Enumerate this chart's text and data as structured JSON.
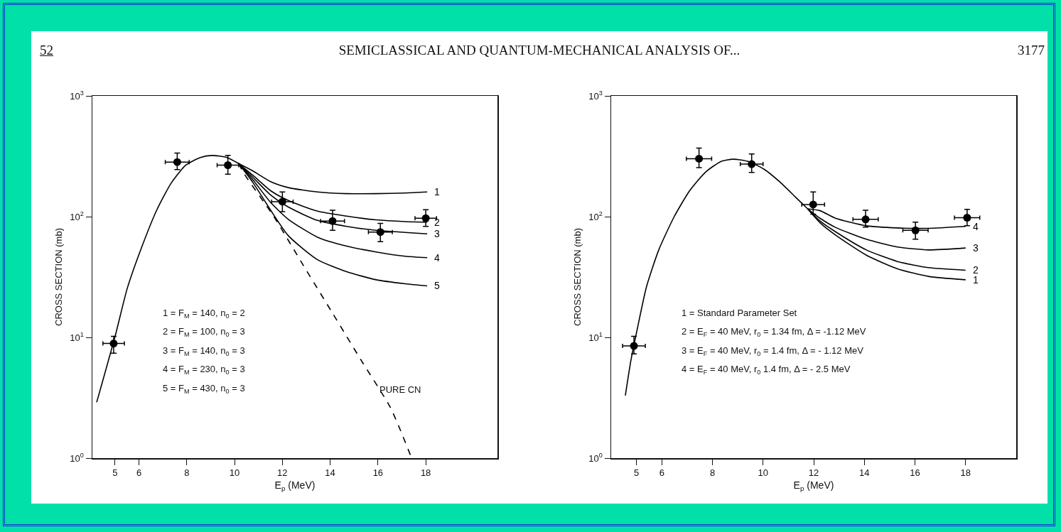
{
  "chart_data": [
    {
      "type": "other",
      "title": "SEMICLASSICAL AND QUANTUM-MECHANICAL ANALYSIS OF...",
      "annotations": [
        "52",
        "3177"
      ]
    },
    {
      "type": "line",
      "xlabel": "E$_{p}$ (MeV)",
      "ylabel": "CROSS SECTION (mb)",
      "log": "y",
      "grid": false,
      "xlim": [
        4.05,
        21
      ],
      "xticks": [
        5,
        6,
        8,
        10,
        12,
        14,
        16,
        18
      ],
      "ylim": [
        1,
        1000
      ],
      "yticks": [
        {
          "value": 1,
          "label": "10$^{0}$"
        },
        {
          "value": 10,
          "label": "10$^{1}$"
        },
        {
          "value": 100,
          "label": "10$^{2}$"
        },
        {
          "value": 1000,
          "label": "10$^{3}$"
        }
      ],
      "annotations": [
        "1 = F$_{M}$ = 140, n$_{0}$ = 2",
        "2 = F$_{M}$ = 100, n$_{0}$ = 3",
        "3 = F$_{M}$ = 140, n$_{0}$ = 3",
        "4 = F$_{M}$ = 230, n$_{0}$ = 3",
        "5 = F$_{M}$ = 430, n$_{0}$ = 3",
        {
          "text": "PURE CN",
          "x": 16.0,
          "y": 3.7
        }
      ],
      "series": [
        {
          "type": "line",
          "color": "#000000",
          "marker": "none",
          "line_style": "solid",
          "x": [
            4.23,
            5,
            5.51,
            6.13,
            6.74,
            7.35,
            7.96,
            8.57,
            9.06,
            9.68,
            10.17
          ],
          "values": [
            2.9,
            10.2,
            25.5,
            57,
            113,
            190,
            267,
            309,
            321,
            309,
            275
          ]
        },
        {
          "type": "line",
          "name": "1",
          "color": "#000000",
          "marker": "none",
          "line_style": "solid",
          "x": [
            10.17,
            10.78,
            11.51,
            12.25,
            13.47,
            14.69,
            15.92,
            17.14,
            18.06
          ],
          "values": [
            275,
            238,
            195,
            174,
            160,
            155,
            155,
            157,
            160
          ]
        },
        {
          "type": "line",
          "name": "2",
          "color": "#000000",
          "marker": "none",
          "line_style": "solid",
          "x": [
            10.17,
            10.78,
            11.51,
            12.25,
            13.47,
            14.69,
            15.92,
            17.14,
            18.06
          ],
          "values": [
            275,
            219,
            164,
            136,
            111,
            101,
            94,
            91,
            90
          ]
        },
        {
          "type": "line",
          "name": "3",
          "color": "#000000",
          "marker": "none",
          "line_style": "solid",
          "x": [
            10.17,
            10.78,
            11.51,
            12.25,
            13.47,
            14.69,
            15.92,
            17.14,
            18.06
          ],
          "values": [
            275,
            210,
            151,
            120,
            93,
            83,
            77,
            74,
            72
          ]
        },
        {
          "type": "line",
          "name": "4",
          "color": "#000000",
          "marker": "none",
          "line_style": "solid",
          "x": [
            10.17,
            10.78,
            11.51,
            12.25,
            13.47,
            14.69,
            15.92,
            17.14,
            18.06
          ],
          "values": [
            275,
            200,
            131,
            95,
            67.6,
            57,
            51,
            47,
            45.7
          ]
        },
        {
          "type": "line",
          "name": "5",
          "color": "#000000",
          "marker": "none",
          "line_style": "solid",
          "x": [
            10.17,
            10.78,
            11.51,
            12.25,
            13.47,
            14.69,
            15.92,
            17.14,
            18.06
          ],
          "values": [
            275,
            190,
            113,
            69.5,
            44,
            35,
            30,
            27.8,
            26.7
          ]
        },
        {
          "type": "line",
          "color": "#000000",
          "marker": "none",
          "line_style": "dashed",
          "x": [
            10.17,
            10.41,
            11.63,
            12.86,
            14.08,
            15.31,
            16.53,
            17.41
          ],
          "values": [
            275,
            225,
            101,
            40,
            16.1,
            6.4,
            2.6,
            1.0
          ]
        },
        {
          "type": "scatter",
          "color": "#000000",
          "marker": "circle",
          "x": [
            4.94,
            7.6,
            9.72,
            12.0,
            14.1,
            16.1,
            18.0
          ],
          "values": [
            8.9,
            283,
            267,
            133,
            92,
            74.5,
            97
          ],
          "errors": [
            [
              7.4,
              10.2
            ],
            [
              245,
              336
            ],
            [
              225,
              322
            ],
            [
              110,
              160
            ],
            [
              77,
              113
            ],
            [
              62,
              88
            ],
            [
              83,
              114
            ]
          ],
          "xerrors": [
            0.45,
            0.5,
            0.45,
            0.45,
            0.5,
            0.5,
            0.45
          ]
        }
      ]
    },
    {
      "type": "line",
      "xlabel": "E$_{p}$ (MeV)",
      "ylabel": "CROSS SECTION (mb)",
      "log": "y",
      "grid": false,
      "xlim": [
        4,
        20
      ],
      "xticks": [
        5,
        6,
        8,
        10,
        12,
        14,
        16,
        18
      ],
      "ylim": [
        1,
        1000
      ],
      "yticks": [
        {
          "value": 1,
          "label": "10$^{0}$"
        },
        {
          "value": 10,
          "label": "10$^{1}$"
        },
        {
          "value": 100,
          "label": "10$^{2}$"
        },
        {
          "value": 1000,
          "label": "10$^{3}$"
        }
      ],
      "annotations": [
        "1 = Standard Parameter Set",
        "2 = E$_{F}$ = 40 MeV, r$_{0}$ = 1.34 fm, Δ = -1.12 MeV",
        "3 = E$_{F}$ = 40 MeV, r$_{0}$ = 1.4 fm, Δ = - 1.12 MeV",
        "4 = E$_{F}$ = 40 MeV, r$_{0}$ 1.4 fm, Δ = - 2.5 MeV"
      ],
      "series": [
        {
          "type": "line",
          "color": "#000000",
          "marker": "none",
          "line_style": "solid",
          "x": [
            4.56,
            4.78,
            5,
            5.39,
            5.88,
            6.49,
            7.1,
            7.72,
            8.33,
            8.82,
            9.43,
            10.04,
            10.65,
            11.27,
            11.76
          ],
          "values": [
            3.3,
            6.45,
            10.9,
            26,
            53,
            100,
            164,
            233,
            286,
            299,
            286,
            247,
            195,
            146,
            116
          ]
        },
        {
          "type": "line",
          "name": "4",
          "color": "#000000",
          "marker": "none",
          "line_style": "solid",
          "x": [
            11.76,
            12.25,
            12.86,
            14.08,
            15.31,
            16.53,
            18.0
          ],
          "values": [
            116,
            112,
            97,
            84,
            80.6,
            80,
            83
          ]
        },
        {
          "type": "line",
          "name": "3",
          "color": "#000000",
          "marker": "none",
          "line_style": "solid",
          "x": [
            11.76,
            12.25,
            12.86,
            14.08,
            15.31,
            16.53,
            18.0
          ],
          "values": [
            116,
            97,
            81.5,
            65,
            56,
            53,
            55
          ]
        },
        {
          "type": "line",
          "name": "2",
          "color": "#000000",
          "marker": "none",
          "line_style": "solid",
          "x": [
            11.76,
            12.25,
            12.86,
            14.08,
            15.31,
            16.53,
            18.0
          ],
          "values": [
            116,
            92,
            75,
            53,
            42.5,
            37.8,
            36
          ]
        },
        {
          "type": "line",
          "name": "1",
          "color": "#000000",
          "marker": "none",
          "line_style": "solid",
          "x": [
            11.76,
            12.25,
            12.86,
            14.08,
            15.31,
            16.53,
            18.0
          ],
          "values": [
            116,
            89,
            70.5,
            48,
            37,
            32,
            30
          ]
        },
        {
          "type": "scatter",
          "color": "#000000",
          "marker": "circle",
          "x": [
            4.9,
            7.47,
            9.55,
            11.98,
            14.05,
            16.02,
            18.06
          ],
          "values": [
            8.5,
            302,
            272,
            126,
            95,
            77,
            98
          ],
          "errors": [
            [
              7.3,
              10.2
            ],
            [
              255,
              370
            ],
            [
              232,
              330
            ],
            [
              105,
              160
            ],
            [
              82,
              113
            ],
            [
              65,
              90
            ],
            [
              84,
              115
            ]
          ],
          "xerrors": [
            0.45,
            0.5,
            0.45,
            0.45,
            0.5,
            0.5,
            0.5
          ]
        }
      ]
    }
  ]
}
